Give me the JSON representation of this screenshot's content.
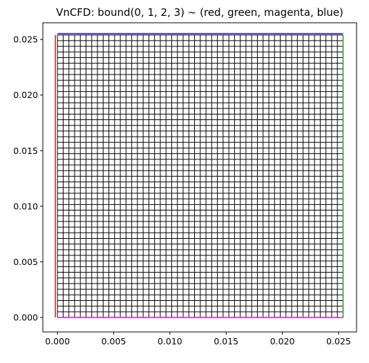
{
  "chart_data": {
    "type": "mesh",
    "title": "VnCFD: bound(0, 1, 2, 3) ~ (red, green, magenta, blue)",
    "xlabel": "",
    "ylabel": "",
    "xlim": [
      -0.0013,
      0.0266
    ],
    "ylim": [
      -0.0013,
      0.0265
    ],
    "x_ticks": [
      0.0,
      0.005,
      0.01,
      0.015,
      0.02,
      0.025
    ],
    "x_tick_labels": [
      "0.000",
      "0.005",
      "0.010",
      "0.015",
      "0.020",
      "0.025"
    ],
    "y_ticks": [
      0.0,
      0.005,
      0.01,
      0.015,
      0.02,
      0.025
    ],
    "y_tick_labels": [
      "0.000",
      "0.005",
      "0.010",
      "0.015",
      "0.020",
      "0.025"
    ],
    "grid": false,
    "mesh": {
      "x_range": [
        0.0,
        0.0254
      ],
      "y_range": [
        0.0,
        0.0254
      ],
      "cells_x": 50,
      "cells_y": 50,
      "line_color": "#000000"
    },
    "boundaries": [
      {
        "id": 0,
        "color": "#d62728",
        "css": "red",
        "from": [
          0.0,
          0.0
        ],
        "to": [
          0.0,
          0.0254
        ]
      },
      {
        "id": 1,
        "color": "#2ca02c",
        "css": "green",
        "from": [
          0.0254,
          0.0
        ],
        "to": [
          0.0254,
          0.0254
        ]
      },
      {
        "id": 2,
        "color": "#e01fe0",
        "css": "magenta",
        "from": [
          0.0,
          0.0
        ],
        "to": [
          0.0254,
          0.0
        ]
      },
      {
        "id": 3,
        "color": "#1f1fff",
        "css": "blue",
        "from": [
          0.0,
          0.0254
        ],
        "to": [
          0.0254,
          0.0254
        ]
      }
    ]
  }
}
